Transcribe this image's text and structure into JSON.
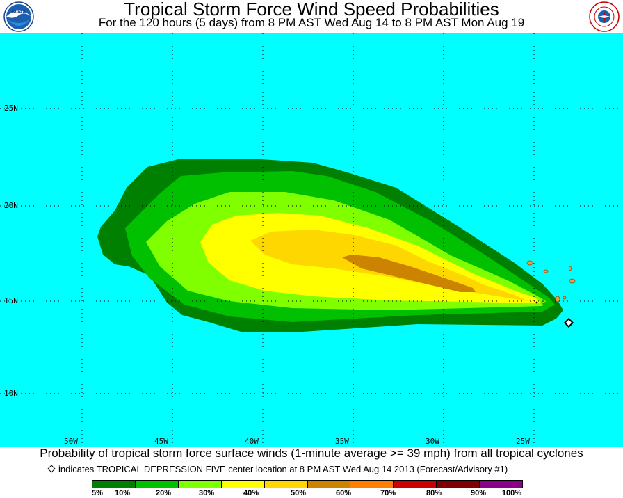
{
  "header": {
    "title": "Tropical Storm Force Wind Speed Probabilities",
    "subtitle": "For the 120 hours (5 days) from 8 PM AST Wed Aug 14 to 8 PM AST Mon Aug 19",
    "logo_left": "NOAA",
    "logo_right": "National Weather Service"
  },
  "map": {
    "background_color": "#00ffff",
    "lat_labels": [
      "25N",
      "20N",
      "15N",
      "10N"
    ],
    "lon_labels": [
      "50W",
      "45W",
      "40W",
      "35W",
      "30W",
      "25W"
    ],
    "grid": "dotted"
  },
  "footer": {
    "caption": "Probability of tropical storm force surface winds (1-minute average >= 39 mph) from all tropical cyclones",
    "marker_note": "indicates TROPICAL DEPRESSION FIVE center location at 8 PM AST Wed Aug 14 2013 (Forecast/Advisory #1)"
  },
  "legend": {
    "colors": [
      "#008000",
      "#00c000",
      "#80ff00",
      "#ffff00",
      "#ffd700",
      "#cc8400",
      "#ff8000",
      "#cc0000",
      "#800000",
      "#8b008b"
    ],
    "labels": [
      "5%",
      "10%",
      "20%",
      "30%",
      "40%",
      "50%",
      "60%",
      "70%",
      "80%",
      "90%",
      "100%"
    ]
  }
}
